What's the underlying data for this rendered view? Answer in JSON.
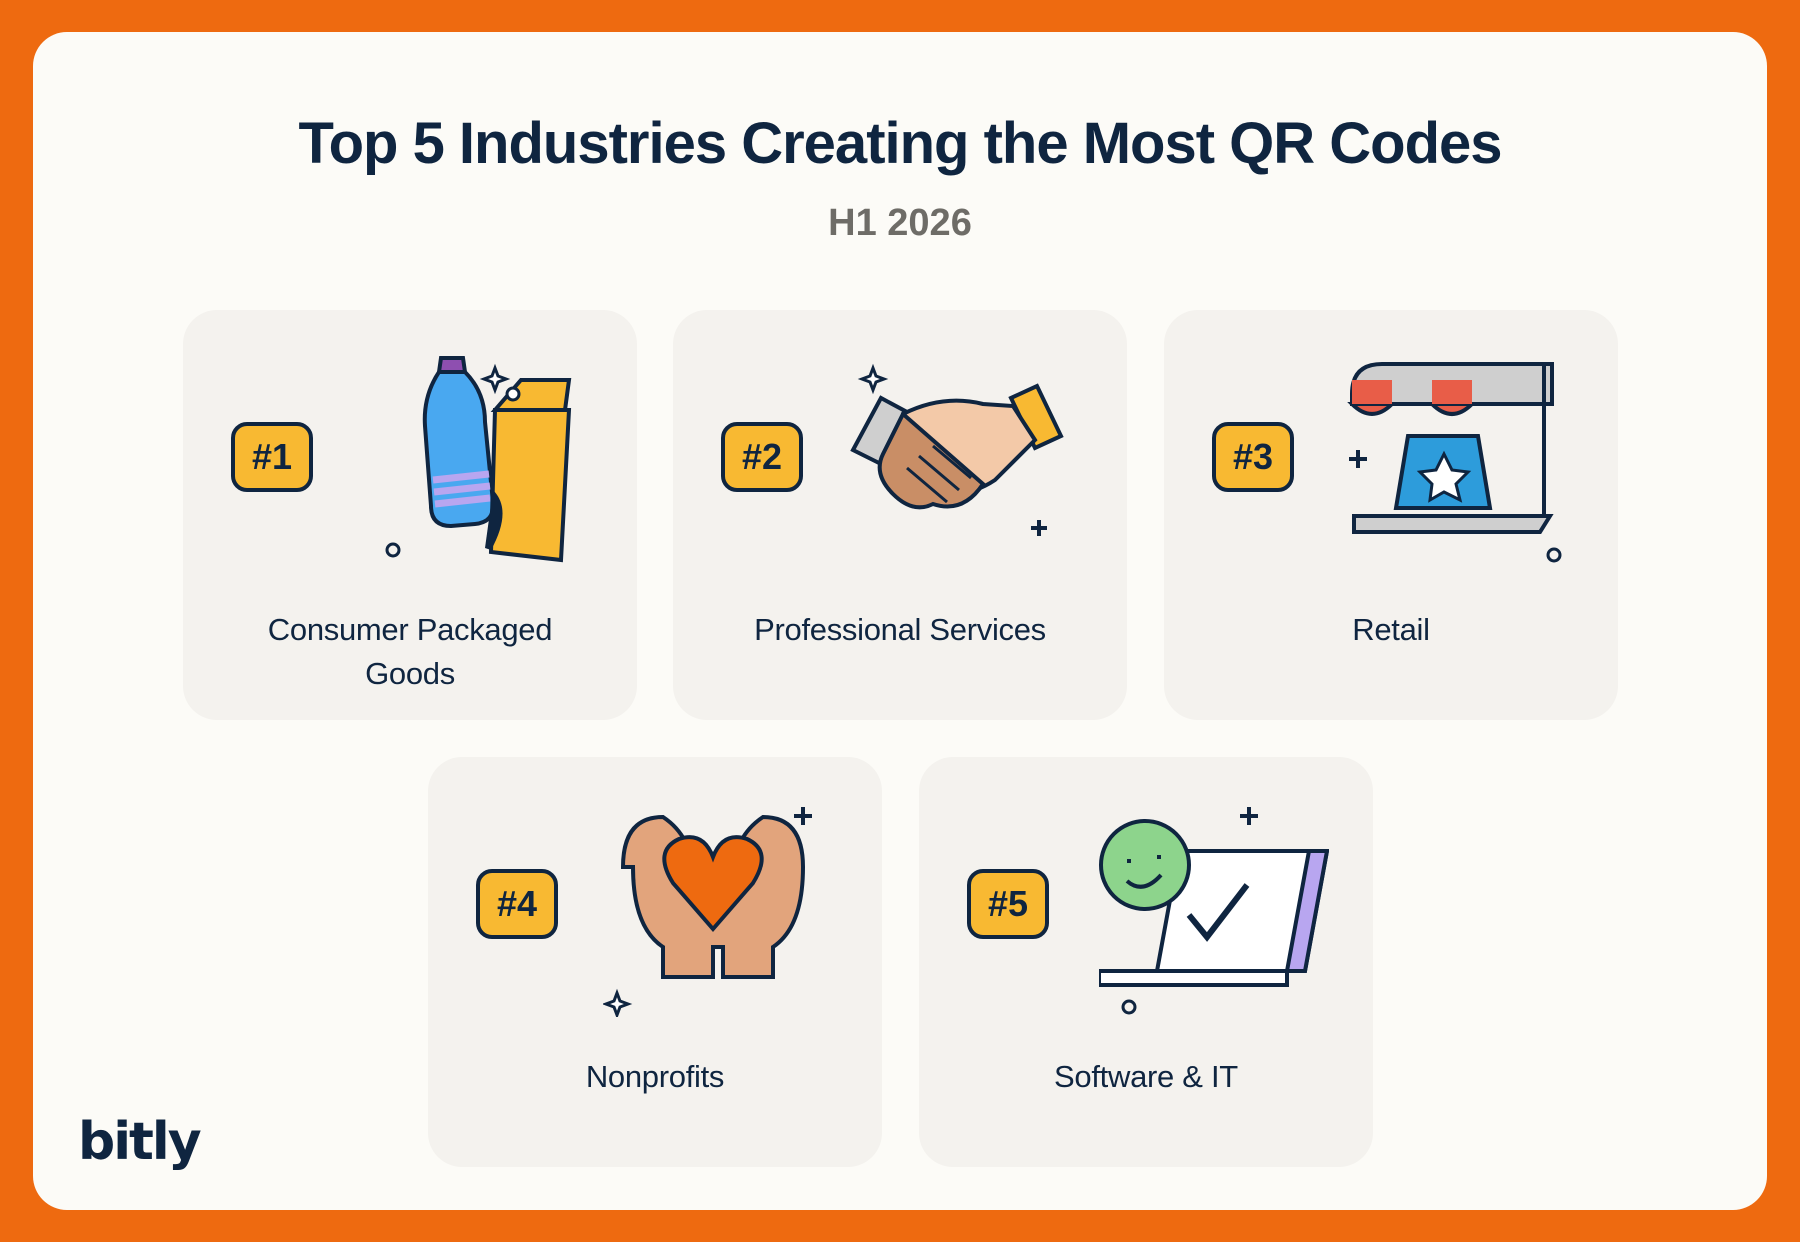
{
  "header": {
    "title": "Top 5 Industries Creating the Most QR Codes",
    "subtitle": "H1 2026"
  },
  "cards": [
    {
      "rank": "#1",
      "label": "Consumer Packaged Goods",
      "icon": "bottle-and-carton-icon"
    },
    {
      "rank": "#2",
      "label": "Professional Services",
      "icon": "handshake-icon"
    },
    {
      "rank": "#3",
      "label": "Retail",
      "icon": "storefront-icon"
    },
    {
      "rank": "#4",
      "label": "Nonprofits",
      "icon": "hands-holding-heart-icon"
    },
    {
      "rank": "#5",
      "label": "Software & IT",
      "icon": "laptop-checkmark-icon"
    }
  ],
  "brand": {
    "logo_text": "bitly"
  },
  "colors": {
    "frame": "#EE6A10",
    "panel": "#FCFBF7",
    "card": "#F4F2EE",
    "badge": "#F8B932",
    "ink": "#0F2540"
  }
}
